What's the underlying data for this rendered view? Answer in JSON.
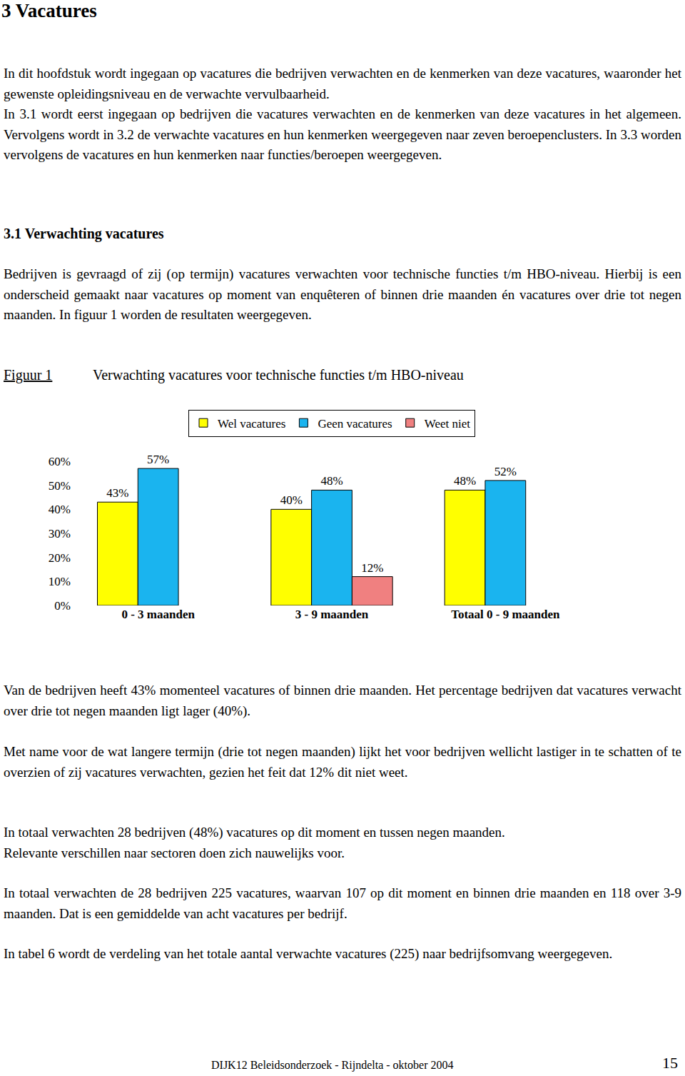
{
  "document": {
    "heading": "3 Vacatures",
    "intro": [
      "In dit hoofdstuk wordt ingegaan op vacatures die bedrijven verwachten en de kenmerken van deze vacatures, waaronder het gewenste opleidingsniveau en de verwachte vervulbaarheid.",
      "In 3.1 wordt eerst ingegaan op bedrijven die vacatures verwachten en de kenmerken van deze vacatures in het algemeen. Vervolgens wordt in 3.2 de verwachte vacatures en hun kenmerken weergegeven naar zeven beroepenclusters. In 3.3 worden vervolgens de vacatures en hun kenmerken naar functies/beroepen weergegeven."
    ],
    "section_heading": "3.1 Verwachting vacatures",
    "section_paragraph": [
      "Bedrijven is gevraagd of zij (op termijn) vacatures verwachten voor technische functies t/m HBO-niveau. Hierbij is een onderscheid gemaakt naar vacatures op moment van enquêteren of binnen drie maanden én vacatures over drie tot negen maanden. In figuur 1 worden de resultaten weergegeven."
    ],
    "figure": {
      "label": "Figuur 1",
      "caption": "Verwachting vacatures voor technische functies t/m HBO-niveau"
    },
    "paragraphs_after": [
      [
        "Van de bedrijven heeft 43% momenteel vacatures of binnen drie maanden. Het percentage bedrijven dat vacatures verwacht over drie tot negen maanden ligt lager (40%)."
      ],
      [
        "Met name voor de wat langere termijn (drie tot negen maanden) lijkt het voor bedrijven wellicht lastiger in te schatten of te overzien of zij vacatures verwachten, gezien het feit dat 12% dit niet weet."
      ],
      [
        "In totaal verwachten 28 bedrijven (48%) vacatures op dit moment en tussen negen maanden.",
        "Relevante verschillen naar sectoren doen zich nauwelijks voor."
      ],
      [
        "In totaal verwachten de 28 bedrijven 225 vacatures, waarvan 107 op dit moment en binnen drie maanden en 118 over 3-9 maanden. Dat is een gemiddelde van acht vacatures per bedrijf."
      ],
      [
        "In tabel 6 wordt de verdeling van het totale aantal verwachte vacatures (225) naar bedrijfsomvang weergegeven."
      ]
    ],
    "footer": "DIJK12 Beleidsonderzoek - Rijndelta - oktober 2004",
    "page_number": "15"
  },
  "chart_data": {
    "type": "bar",
    "categories": [
      "0 - 3 maanden",
      "3 - 9 maanden",
      "Totaal 0 - 9 maanden"
    ],
    "series": [
      {
        "name": "Wel vacatures",
        "color": "#ffff00",
        "values": [
          43,
          40,
          48
        ],
        "value_labels": [
          "43%",
          "40%",
          "48%"
        ]
      },
      {
        "name": "Geen vacatures",
        "color": "#1ab4ef",
        "values": [
          57,
          48,
          52
        ],
        "value_labels": [
          "57%",
          "48%",
          "52%"
        ]
      },
      {
        "name": "Weet niet",
        "color": "#f08080",
        "values": [
          null,
          12,
          null
        ],
        "value_labels": [
          null,
          "12%",
          null
        ]
      }
    ],
    "ylim": [
      0,
      60
    ],
    "yticks": [
      {
        "value": 0,
        "label": "0%"
      },
      {
        "value": 10,
        "label": "10%"
      },
      {
        "value": 20,
        "label": "20%"
      },
      {
        "value": 30,
        "label": "30%"
      },
      {
        "value": 40,
        "label": "40%"
      },
      {
        "value": 50,
        "label": "50%"
      },
      {
        "value": 60,
        "label": "60%"
      }
    ],
    "grid": false,
    "legend": "top",
    "data_labels": true
  }
}
